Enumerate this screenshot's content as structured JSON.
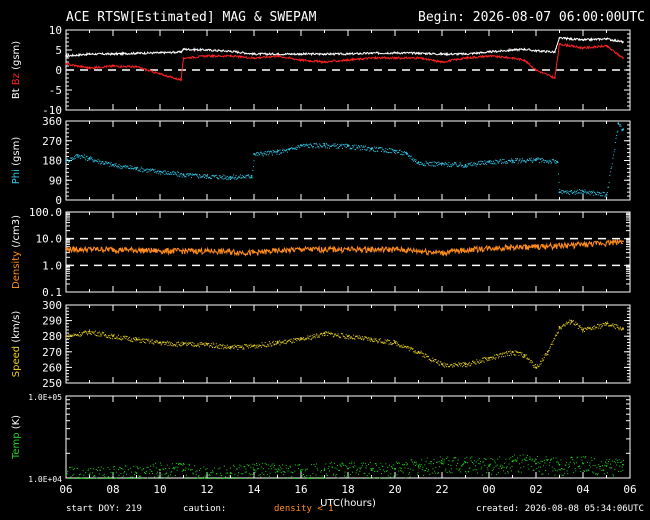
{
  "header": {
    "title": "ACE RTSW[Estimated] MAG & SWEPAM",
    "begin": "Begin: 2026-08-07 06:00:00UTC"
  },
  "footer": {
    "start_doy": "start DOY: 219",
    "caution": "caution:",
    "density_note": "density < 1",
    "created": "created: 2026-08-08 05:34:06UTC"
  },
  "colors": {
    "bt": "#ffffff",
    "bz": "#ff2020",
    "phi": "#30c8e8",
    "density": "#ff8c1a",
    "speed": "#e8d020",
    "temp": "#20d020",
    "axis": "#ffffff",
    "background": "#000000"
  },
  "chart_data": [
    {
      "type": "line",
      "title": "Bt Bz (gsm)",
      "ylabel": "Bt Bz (gsm)",
      "ylim": [
        -10,
        10
      ],
      "yticks": [
        "10",
        "5",
        "0",
        "-5",
        "-10"
      ],
      "reference_lines": [
        0
      ],
      "x": [
        6,
        7,
        8,
        9,
        10,
        10.9,
        11,
        12,
        13,
        14,
        15,
        16,
        17,
        18,
        19,
        20,
        21,
        22,
        23,
        24,
        25,
        25.5,
        26,
        26.8,
        27,
        28,
        29,
        29.7
      ],
      "series": [
        {
          "name": "Bt",
          "values": [
            3.5,
            4.0,
            4.0,
            4.2,
            4.3,
            4.5,
            5.2,
            5.0,
            4.7,
            4.0,
            4.0,
            4.0,
            4.0,
            4.0,
            4.2,
            4.3,
            4.2,
            4.0,
            4.0,
            4.5,
            5.0,
            5.2,
            4.8,
            4.5,
            8.0,
            7.5,
            7.8,
            7.0
          ]
        },
        {
          "name": "Bz",
          "values": [
            1.5,
            0.5,
            1.0,
            0.8,
            -1.0,
            -2.5,
            3.0,
            3.5,
            3.5,
            3.0,
            3.5,
            2.5,
            2.0,
            2.5,
            3.0,
            3.0,
            3.0,
            2.0,
            3.0,
            3.5,
            3.0,
            2.5,
            0.0,
            -2.0,
            6.5,
            5.5,
            6.0,
            3.0
          ]
        }
      ]
    },
    {
      "type": "scatter",
      "title": "Phi (gsm)",
      "ylabel": "Phi (gsm)",
      "ylim": [
        0,
        360
      ],
      "yticks": [
        "360",
        "270",
        "180",
        "90",
        "0"
      ],
      "x": [
        6,
        6.5,
        7,
        8,
        9,
        10,
        11,
        12,
        13,
        13.9,
        14,
        15,
        15.5,
        16,
        17,
        18,
        19,
        20,
        20.5,
        21,
        22,
        23,
        24,
        25,
        26,
        26.9,
        27,
        28,
        29,
        29.5,
        29.7
      ],
      "series": [
        {
          "name": "Phi",
          "values": [
            180,
            205,
            190,
            160,
            145,
            130,
            115,
            110,
            105,
            110,
            210,
            220,
            230,
            250,
            250,
            245,
            235,
            225,
            210,
            170,
            165,
            160,
            175,
            180,
            185,
            175,
            35,
            40,
            25,
            350,
            320
          ]
        }
      ]
    },
    {
      "type": "line",
      "title": "Density (/cm3)",
      "ylabel": "Density (/cm3)",
      "yscale": "log",
      "ylim": [
        0.1,
        100
      ],
      "yticks": [
        "100.0",
        "10.0",
        "1.0",
        "0.1"
      ],
      "reference_lines": [
        1,
        10
      ],
      "x": [
        6,
        8,
        10,
        12,
        14,
        16,
        18,
        20,
        22,
        24,
        26,
        27,
        28,
        29,
        29.7
      ],
      "series": [
        {
          "name": "Density",
          "values": [
            4.0,
            4.0,
            3.5,
            3.5,
            3.0,
            4.0,
            4.0,
            4.0,
            3.0,
            4.5,
            5.0,
            5.5,
            6.0,
            7.0,
            8.0
          ]
        }
      ]
    },
    {
      "type": "scatter",
      "title": "Speed (km/s)",
      "ylabel": "Speed (km/s)",
      "ylim": [
        250,
        300
      ],
      "yticks": [
        "300",
        "290",
        "280",
        "270",
        "260",
        "250"
      ],
      "x": [
        6,
        7,
        8,
        9,
        10,
        11,
        12,
        13,
        14,
        15,
        16,
        17,
        18,
        19,
        20,
        21,
        22,
        23,
        24,
        25,
        25.5,
        26,
        26.5,
        27,
        27.5,
        28,
        29,
        29.7
      ],
      "series": [
        {
          "name": "Speed",
          "values": [
            280,
            283,
            280,
            278,
            276,
            275,
            275,
            273,
            274,
            276,
            278,
            282,
            280,
            278,
            276,
            270,
            262,
            262,
            266,
            270,
            268,
            260,
            270,
            286,
            290,
            284,
            288,
            285
          ]
        }
      ]
    },
    {
      "type": "scatter",
      "title": "Temp (K)",
      "ylabel": "Temp (K)",
      "yscale": "log",
      "ylim": [
        10000,
        100000
      ],
      "yticks": [
        "1.0E+05",
        "1.0E+04"
      ],
      "x": [
        6,
        7,
        8,
        9,
        10,
        11,
        12,
        13,
        14,
        15,
        16,
        17,
        18,
        19,
        20,
        21,
        22,
        23,
        24,
        25,
        26,
        27,
        28,
        29,
        29.7
      ],
      "series": [
        {
          "name": "Temp",
          "values": [
            11000,
            11000,
            11500,
            11500,
            12500,
            12500,
            11500,
            11500,
            12500,
            12000,
            12000,
            12500,
            13000,
            12500,
            13000,
            14000,
            15000,
            15500,
            14000,
            16000,
            15000,
            14500,
            15000,
            14000,
            14500
          ]
        }
      ]
    }
  ],
  "xaxis": {
    "label": "UTC(hours)",
    "tick_labels": [
      "06",
      "08",
      "10",
      "12",
      "14",
      "16",
      "18",
      "20",
      "22",
      "00",
      "02",
      "04",
      "06"
    ],
    "range": [
      6,
      30
    ]
  }
}
